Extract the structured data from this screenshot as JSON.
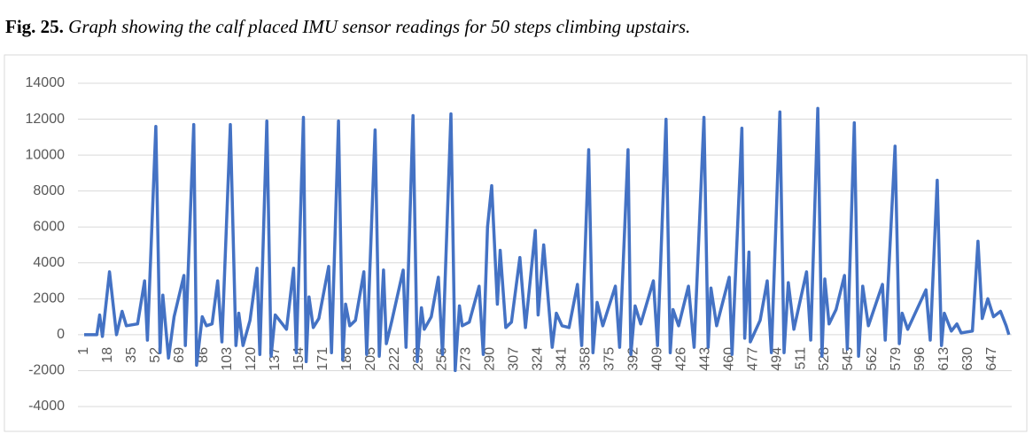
{
  "caption": {
    "label": "Fig. 25.",
    "text": "Graph showing the calf placed IMU sensor readings for 50 steps climbing upstairs."
  },
  "chart_data": {
    "type": "line",
    "color": "#4472c4",
    "grid": true,
    "xlim": [
      1,
      661
    ],
    "ylim": [
      -4000,
      14000
    ],
    "yticks": [
      -4000,
      -2000,
      0,
      2000,
      4000,
      6000,
      8000,
      10000,
      12000,
      14000
    ],
    "xticks": [
      1,
      18,
      35,
      52,
      69,
      86,
      103,
      120,
      137,
      154,
      171,
      188,
      205,
      222,
      239,
      256,
      273,
      290,
      307,
      324,
      341,
      358,
      375,
      392,
      409,
      426,
      443,
      460,
      477,
      494,
      511,
      528,
      545,
      562,
      579,
      596,
      613,
      630,
      647
    ],
    "x": [
      1,
      10,
      12,
      14,
      19,
      24,
      28,
      31,
      39,
      44,
      46,
      52,
      55,
      57,
      61,
      65,
      72,
      73,
      79,
      81,
      85,
      88,
      92,
      96,
      99,
      105,
      109,
      111,
      114,
      119,
      124,
      126,
      131,
      134,
      137,
      141,
      145,
      150,
      152,
      157,
      159,
      161,
      164,
      168,
      175,
      177,
      182,
      185,
      187,
      190,
      194,
      200,
      202,
      208,
      211,
      214,
      216,
      220,
      228,
      230,
      235,
      238,
      241,
      243,
      248,
      253,
      256,
      262,
      265,
      268,
      270,
      275,
      282,
      285,
      288,
      291,
      295,
      297,
      301,
      305,
      311,
      315,
      322,
      324,
      328,
      334,
      337,
      341,
      346,
      352,
      355,
      360,
      363,
      366,
      370,
      379,
      382,
      388,
      390,
      393,
      397,
      406,
      409,
      415,
      418,
      420,
      424,
      431,
      435,
      442,
      445,
      447,
      451,
      460,
      462,
      469,
      471,
      474,
      475,
      482,
      487,
      490,
      496,
      499,
      502,
      506,
      515,
      518,
      523,
      526,
      528,
      531,
      536,
      542,
      544,
      549,
      552,
      555,
      559,
      569,
      571,
      578,
      581,
      583,
      587,
      600,
      603,
      608,
      611,
      613,
      618,
      622,
      625,
      633,
      637,
      640,
      644,
      648,
      653,
      657,
      659
    ],
    "values": [
      0,
      0,
      1100,
      -100,
      3500,
      0,
      1300,
      500,
      600,
      3000,
      -300,
      11600,
      -1000,
      2200,
      -1300,
      1000,
      3300,
      -600,
      11700,
      -1700,
      1000,
      500,
      600,
      3000,
      -400,
      11700,
      -600,
      1200,
      -600,
      800,
      3700,
      -1100,
      11900,
      -1200,
      1100,
      700,
      300,
      3700,
      -1000,
      12100,
      -1500,
      2100,
      400,
      900,
      3800,
      -1000,
      11900,
      -1400,
      1700,
      500,
      800,
      3500,
      -1100,
      11400,
      -1200,
      3600,
      -500,
      800,
      3600,
      -700,
      12200,
      -1500,
      1500,
      300,
      1000,
      3200,
      -1100,
      12300,
      -2000,
      1600,
      500,
      700,
      2700,
      -1100,
      6000,
      8300,
      1700,
      4700,
      400,
      700,
      4300,
      400,
      5800,
      1100,
      5000,
      -700,
      1200,
      500,
      400,
      2800,
      -600,
      10300,
      -1000,
      1800,
      500,
      2700,
      -700,
      10300,
      -1100,
      1600,
      600,
      3000,
      -600,
      12000,
      -1000,
      1400,
      500,
      2700,
      -700,
      12100,
      -700,
      2600,
      500,
      3200,
      -1100,
      11500,
      -200,
      4600,
      -400,
      800,
      3000,
      -1000,
      12400,
      -1000,
      2900,
      300,
      3500,
      -300,
      12600,
      -1200,
      3100,
      600,
      1400,
      3300,
      -800,
      11800,
      -1200,
      2700,
      500,
      2800,
      -300,
      10500,
      -500,
      1200,
      300,
      2500,
      -300,
      8600,
      -600,
      1200,
      200,
      600,
      100,
      200,
      5200,
      900,
      2000,
      1000,
      1300,
      500,
      0
    ]
  }
}
